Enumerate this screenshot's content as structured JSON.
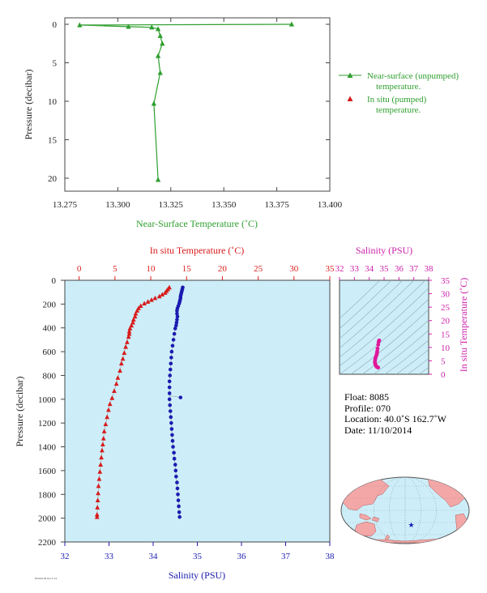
{
  "chart_data": [
    {
      "type": "line",
      "xlabel": "Near-Surface Temperature (˚C)",
      "ylabel": "Pressure (decibar)",
      "xlim": [
        13.275,
        13.4
      ],
      "ylim": [
        0,
        22
      ],
      "xticks": [
        "13.275",
        "13.300",
        "13.325",
        "13.350",
        "13.375",
        "13.400"
      ],
      "yticks": [
        "0",
        "5",
        "10",
        "15",
        "20"
      ],
      "legend_position": "right",
      "legend": [
        {
          "label": "Near-surface (unpumped)",
          "label2": "temperature.",
          "color": "#2f9e2f"
        },
        {
          "label": "In situ (pumped)",
          "label2": "temperature.",
          "color": "#d81b1b"
        }
      ],
      "series": [
        {
          "name": "Near-surface (unpumped) temperature.",
          "color": "#2f9e2f",
          "points": [
            [
              13.382,
              0.0
            ],
            [
              13.282,
              0.1
            ],
            [
              13.305,
              0.3
            ],
            [
              13.316,
              0.4
            ],
            [
              13.319,
              0.6
            ],
            [
              13.32,
              1.5
            ],
            [
              13.321,
              2.5
            ],
            [
              13.319,
              4.1
            ],
            [
              13.32,
              6.3
            ],
            [
              13.317,
              10.3
            ],
            [
              13.319,
              20.2
            ]
          ]
        }
      ]
    },
    {
      "type": "line",
      "ylabel": "Pressure (decibar)",
      "ylim": [
        0,
        2200
      ],
      "yticks": [
        "0",
        "200",
        "400",
        "600",
        "800",
        "1000",
        "1200",
        "1400",
        "1600",
        "1800",
        "2000",
        "2200"
      ],
      "top_axis": {
        "label": "In situ Temperature (˚C)",
        "range": [
          -2,
          35
        ],
        "ticks": [
          "0",
          "5",
          "10",
          "15",
          "20",
          "25",
          "30",
          "35"
        ],
        "color": "#d81b1b"
      },
      "bottom_axis": {
        "label": "Salinity (PSU)",
        "range": [
          32,
          38
        ],
        "ticks": [
          "32",
          "33",
          "34",
          "35",
          "36",
          "37",
          "38"
        ],
        "color": "#1b1bb0"
      },
      "series": [
        {
          "name": "Temperature",
          "color": "#d81b1b",
          "points": [
            [
              12.6,
              60
            ],
            [
              12.4,
              75
            ],
            [
              12.2,
              90
            ],
            [
              12.0,
              105
            ],
            [
              11.6,
              120
            ],
            [
              11.2,
              135
            ],
            [
              10.6,
              150
            ],
            [
              10.1,
              165
            ],
            [
              9.6,
              180
            ],
            [
              9.1,
              195
            ],
            [
              8.6,
              215
            ],
            [
              8.3,
              235
            ],
            [
              8.1,
              255
            ],
            [
              7.9,
              280
            ],
            [
              7.8,
              305
            ],
            [
              7.6,
              330
            ],
            [
              7.5,
              355
            ],
            [
              7.3,
              380
            ],
            [
              7.1,
              405
            ],
            [
              7.0,
              430
            ],
            [
              7.0,
              450
            ],
            [
              6.9,
              475
            ],
            [
              6.7,
              520
            ],
            [
              6.5,
              560
            ],
            [
              6.3,
              610
            ],
            [
              6.1,
              660
            ],
            [
              5.9,
              700
            ],
            [
              5.7,
              760
            ],
            [
              5.4,
              820
            ],
            [
              5.2,
              870
            ],
            [
              4.9,
              930
            ],
            [
              4.6,
              990
            ],
            [
              4.3,
              1040
            ],
            [
              4.1,
              1090
            ],
            [
              3.9,
              1150
            ],
            [
              3.7,
              1210
            ],
            [
              3.5,
              1270
            ],
            [
              3.4,
              1330
            ],
            [
              3.3,
              1380
            ],
            [
              3.2,
              1430
            ],
            [
              3.1,
              1490
            ],
            [
              3.0,
              1550
            ],
            [
              2.9,
              1610
            ],
            [
              2.8,
              1670
            ],
            [
              2.7,
              1730
            ],
            [
              2.65,
              1790
            ],
            [
              2.6,
              1850
            ],
            [
              2.55,
              1910
            ],
            [
              2.5,
              1970
            ],
            [
              2.5,
              1990
            ]
          ]
        },
        {
          "name": "Salinity",
          "color": "#1b1bb0",
          "points": [
            [
              34.67,
              60
            ],
            [
              34.66,
              75
            ],
            [
              34.65,
              90
            ],
            [
              34.64,
              105
            ],
            [
              34.63,
              120
            ],
            [
              34.62,
              135
            ],
            [
              34.62,
              150
            ],
            [
              34.61,
              165
            ],
            [
              34.6,
              180
            ],
            [
              34.59,
              195
            ],
            [
              34.57,
              215
            ],
            [
              34.55,
              235
            ],
            [
              34.54,
              255
            ],
            [
              34.54,
              280
            ],
            [
              34.55,
              305
            ],
            [
              34.54,
              330
            ],
            [
              34.53,
              355
            ],
            [
              34.52,
              380
            ],
            [
              34.5,
              405
            ],
            [
              34.48,
              450
            ],
            [
              34.46,
              500
            ],
            [
              34.44,
              550
            ],
            [
              34.42,
              600
            ],
            [
              34.41,
              650
            ],
            [
              34.4,
              700
            ],
            [
              34.39,
              750
            ],
            [
              34.38,
              800
            ],
            [
              34.37,
              850
            ],
            [
              34.37,
              900
            ],
            [
              34.37,
              950
            ],
            [
              34.37,
              1000
            ],
            [
              34.38,
              1050
            ],
            [
              34.39,
              1100
            ],
            [
              34.4,
              1150
            ],
            [
              34.41,
              1200
            ],
            [
              34.42,
              1250
            ],
            [
              34.43,
              1300
            ],
            [
              34.44,
              1350
            ],
            [
              34.45,
              1400
            ],
            [
              34.47,
              1450
            ],
            [
              34.48,
              1500
            ],
            [
              34.5,
              1550
            ],
            [
              34.51,
              1600
            ],
            [
              34.52,
              1650
            ],
            [
              34.54,
              1700
            ],
            [
              34.55,
              1750
            ],
            [
              34.56,
              1800
            ],
            [
              34.57,
              1850
            ],
            [
              34.58,
              1900
            ],
            [
              34.59,
              1950
            ],
            [
              34.6,
              1990
            ]
          ]
        },
        {
          "name": "Salinity outlier",
          "color": "#1b1bb0",
          "points": [
            [
              34.62,
              985
            ]
          ]
        }
      ]
    },
    {
      "type": "scatter",
      "xlabel": "Salinity (PSU)",
      "ylabel": "In situ Temperature (˚C)",
      "xlim": [
        32,
        38
      ],
      "ylim": [
        0,
        35
      ],
      "xticks": [
        "32",
        "33",
        "34",
        "35",
        "36",
        "37",
        "38"
      ],
      "yticks": [
        "0",
        "5",
        "10",
        "15",
        "20",
        "25",
        "30",
        "35"
      ],
      "series": [
        {
          "name": "T-S",
          "color": "#e0189a",
          "points": [
            [
              34.67,
              12.6
            ],
            [
              34.63,
              12.0
            ],
            [
              34.6,
              11.0
            ],
            [
              34.56,
              9.6
            ],
            [
              34.54,
              8.6
            ],
            [
              34.52,
              7.9
            ],
            [
              34.5,
              7.3
            ],
            [
              34.46,
              6.7
            ],
            [
              34.42,
              6.1
            ],
            [
              34.4,
              5.4
            ],
            [
              34.38,
              4.6
            ],
            [
              34.4,
              3.9
            ],
            [
              34.43,
              3.4
            ],
            [
              34.47,
              3.0
            ],
            [
              34.52,
              2.7
            ],
            [
              34.57,
              2.6
            ],
            [
              34.6,
              2.5
            ]
          ]
        }
      ]
    }
  ],
  "info": {
    "float": "Float:  8085",
    "profile": "Profile:  070",
    "location": "Location:  40.0˚S  162.7˚W",
    "date": "Date:  11/10/2014"
  },
  "map": {
    "marker": {
      "lat": -40.0,
      "lon": -162.7,
      "symbol": "★",
      "color": "#1b1bb0"
    }
  },
  "footer_text": "Plotted 2014-11-14"
}
